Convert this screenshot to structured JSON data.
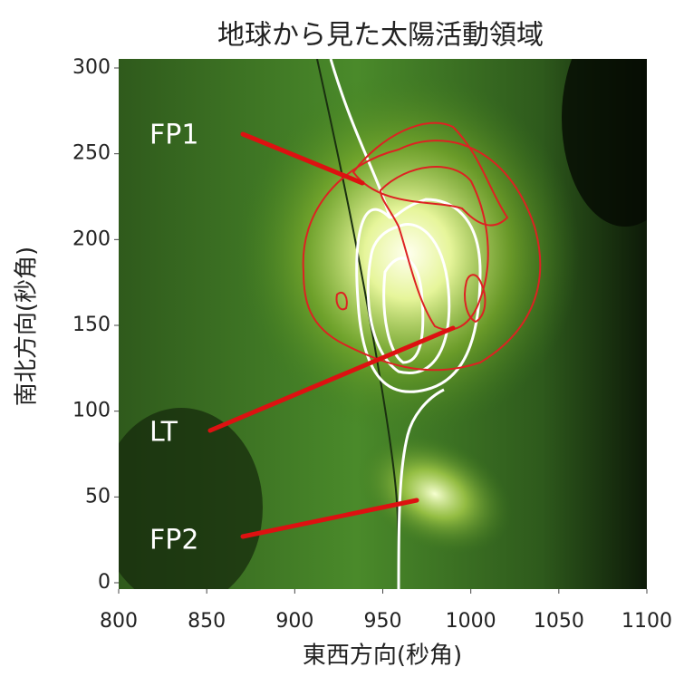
{
  "chart_data": {
    "type": "image",
    "title": "地球から見た太陽活動領域",
    "x_label": "東西方向(秒角)",
    "y_label": "南北方向(秒角)",
    "xlim": [
      800,
      1100
    ],
    "xticks": [
      800,
      850,
      900,
      950,
      1000,
      1050,
      1100
    ],
    "ylim": [
      0,
      300
    ],
    "yticks": [
      0,
      50,
      100,
      150,
      200,
      250,
      300
    ],
    "annotations": [
      "FP1",
      "LT",
      "FP2"
    ]
  }
}
